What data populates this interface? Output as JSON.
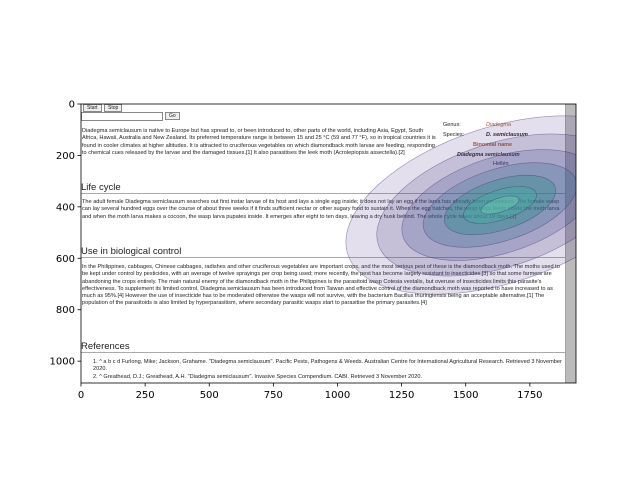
{
  "chart_data": {
    "type": "image",
    "xlim": [
      0,
      1930
    ],
    "ylim": [
      1085,
      0
    ],
    "xticks": [
      0,
      250,
      500,
      750,
      1000,
      1250,
      1500,
      1750
    ],
    "yticks": [
      0,
      200,
      400,
      600,
      800,
      1000
    ]
  },
  "screenshot": {
    "buttons": [
      "Start",
      "Stop"
    ],
    "search_button": "Go",
    "intro": "Diadegma semiclausum is native to Europe but has spread to, or been introduced to, other parts of the world, including Asia, Egypt, South Africa, Hawaii, Australia and New Zealand. Its preferred temperature range is between 15 and 25 °C (59 and 77 °F), so in tropical countries it is found in cooler climates at higher altitudes. It is attracted to cruciferous vegetables on which diamondback moth larvae are feeding, responding to chemical cues released by the larvae and the damaged tissues.[1] It also parasitises the leek moth (Acrolepiopsis assectella).[2]",
    "infobox": {
      "genus_label": "Genus:",
      "genus": "Diadegma",
      "species_label": "Species:",
      "species": "D. semiclausum",
      "binomial_heading": "Binomial name",
      "binomial": "Diadegma semiclausum",
      "author": "Hellén"
    },
    "sections": [
      {
        "heading": "Life cycle",
        "text": "The adult female Diadegma semiclausum searches out first instar larvae of its host and lays a single egg inside; it does not lay an egg if the larva has already been parasitised. The female wasp can lay several hundred eggs over the course of about three weeks if it finds sufficient nectar or other sugary food to sustain it. When the egg hatches, the wasp larva feeds inside the moth larva and when the moth larva makes a cocoon, the wasp larva pupates inside. It emerges after eight to ten days, leaving a dry husk behind. The whole cycle takes about 19 days.[1]"
      },
      {
        "heading": "Use in biological control",
        "text": "In the Philippines, cabbages, Chinese cabbages, radishes and other cruciferous vegetables are important crops, and the most serious pest of these is the diamondback moth. The moths used to be kept under control by pesticides, with an average of twelve sprayings per crop being used; more recently, the pest has become largely resistant to insecticides,[3] so that some farmers are abandoning the crops entirely. The main natural enemy of the diamondback moth in the Philippines is the parasitoid wasp Cotesia vestalis, but overuse of insecticides limits this parasite's effectiveness. To supplement its limited control, Diadegma semiclausum has been introduced from Taiwan and effective control of the diamondback moth was reported to have increased to as much as 95%.[4] However the use of insecticide has to be moderated otherwise the wasps will not survive, with the bacterium Bacillus thuringiensis being an acceptable alternative.[1] The population of the parasitoids is also limited by hyperparasitism, where secondary parasitic wasps start to parasitise the primary parasites.[4]"
      },
      {
        "heading": "References",
        "items": [
          "1. ^ a b c d Furlong, Mike; Jackson, Grahame. \"Diadegma semiclausum\". Pacific Pests, Pathogens & Weeds. Australian Centre for International Agricultural Research. Retrieved 3 November 2020.",
          "2. ^ Greathead, D.J.; Greathead, A.H. \"Diadegma semiclausum\". Invasive Species Compendium. CABI. Retrieved 3 November 2020."
        ]
      }
    ]
  }
}
